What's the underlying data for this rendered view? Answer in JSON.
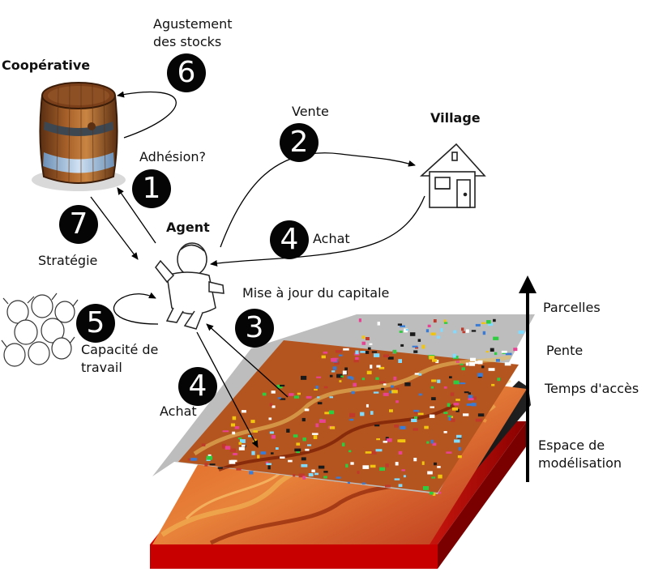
{
  "titles": {
    "cooperative": "Coopérative",
    "village": "Village",
    "agent": "Agent"
  },
  "steps": [
    {
      "num": "1",
      "label": "Adhésion?"
    },
    {
      "num": "2",
      "label": "Vente"
    },
    {
      "num": "3",
      "label": "Mise à jour du capitale"
    },
    {
      "num": "4",
      "label": "Achat"
    },
    {
      "num": "4",
      "label": "Achat"
    },
    {
      "num": "5",
      "label": "Capacité de travail"
    },
    {
      "num": "6",
      "label": "Agustement des stocks"
    },
    {
      "num": "7",
      "label": "Stratégie"
    }
  ],
  "layers": [
    "Parcelles",
    "Pente",
    "Temps d'accès",
    "Espace de modélisation"
  ],
  "icons": [
    "barrel-icon",
    "house-icon",
    "agent-icon",
    "workers-icon",
    "up-arrow-icon"
  ]
}
